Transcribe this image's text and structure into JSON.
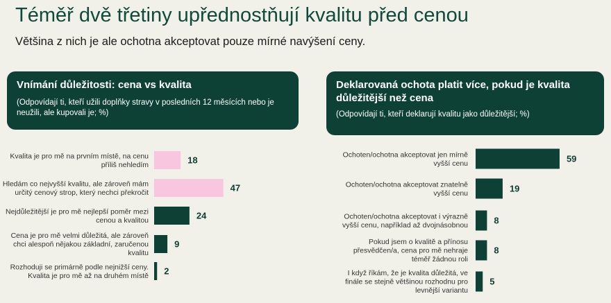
{
  "header": {
    "title": "Téměř dvě třetiny upřednostňují kvalitu před cenou",
    "subtitle": "Většina z nich je ale ochotna akceptovat pouze mírné navýšení ceny."
  },
  "left_panel": {
    "title": "Vnímání důležitosti:  cena vs kvalita",
    "note": "(Odpovídají ti, kteří užili doplňky stravy v posledních 12 měsících nebo je neužili, ale kupovali je; %)"
  },
  "right_panel": {
    "title": "Deklarovaná ochota platit více, pokud je kvalita důležitější než cena",
    "note": "(Odpovídají ti, kteří deklarují kvalitu jako důležitější; %)"
  },
  "colors": {
    "pink": "#f9c6df",
    "dark": "#0e4136"
  },
  "chart_data": [
    {
      "type": "bar",
      "orientation": "horizontal",
      "categories": [
        [
          "Kvalita je pro mě na prvním místě, na cenu",
          "příliš nehledím"
        ],
        [
          "Hledám co nejvyšší kvalitu, ale zároveň mám",
          "určitý cenový strop, který nechci překročit"
        ],
        [
          "Nejdůležitější je pro mě nejlepší poměr mezi",
          "cenou a kvalitou"
        ],
        [
          "Cena je pro mě velmi důležitá, ale zároveň",
          "chci alespoň nějakou základní, zaručenou",
          "kvalitu"
        ],
        [
          "Rozhoduji se primárně podle nejnižší ceny.",
          "Kvalita je pro mě až na druhém místě"
        ]
      ],
      "values": [
        18,
        47,
        24,
        9,
        2
      ],
      "bar_colors": [
        "#f9c6df",
        "#f9c6df",
        "#0e4136",
        "#0e4136",
        "#0e4136"
      ]
    },
    {
      "type": "bar",
      "orientation": "horizontal",
      "categories": [
        [
          "Ochoten/ochotna akceptovat jen mírně",
          "vyšší cenu"
        ],
        [
          "Ochoten/ochotna akceptovat znatelně",
          "vyšší cenu"
        ],
        [
          "Ochoten/ochotna akceptovat i výrazně",
          "vyšší cenu, například až dvojnásobnou"
        ],
        [
          "Pokud jsem o kvalitě a přínosu",
          "přesvědčen/a, cena pro mě nehraje",
          "téměř žádnou roli"
        ],
        [
          "I když říkám, že je kvalita důležitá, ve",
          "finále se stejně většinou rozhodnu pro",
          "levnější variantu"
        ]
      ],
      "values": [
        59,
        19,
        8,
        8,
        5
      ],
      "bar_colors": [
        "#0e4136",
        "#0e4136",
        "#0e4136",
        "#0e4136",
        "#0e4136"
      ]
    }
  ]
}
